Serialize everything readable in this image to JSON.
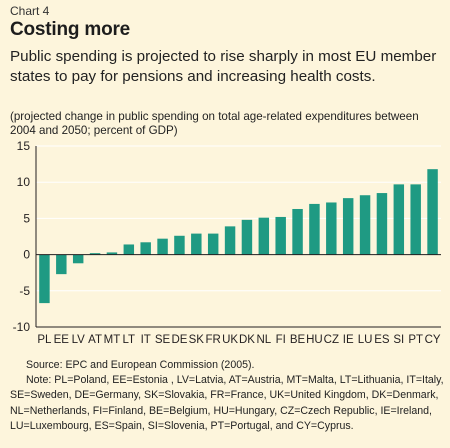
{
  "header": {
    "chart_label": "Chart 4",
    "title": "Costing more",
    "subtitle": "Public spending is projected to rise sharply in most EU member states to pay for pensions and increasing health costs."
  },
  "colors": {
    "background": "#fdf5dc",
    "bar": "#1f9a83",
    "grid": "#ffffff",
    "axis": "#231f20"
  },
  "chart_data": {
    "type": "bar",
    "ylabel": "(projected change in public spending on total age-related expenditures between 2004 and 2050; percent of GDP)",
    "ylim": [
      -10,
      15
    ],
    "yticks": [
      -10,
      -5,
      0,
      5,
      10,
      15
    ],
    "grid": true,
    "categories": [
      "PL",
      "EE",
      "LV",
      "AT",
      "MT",
      "LT",
      "IT",
      "SE",
      "DE",
      "SK",
      "FR",
      "UK",
      "DK",
      "NL",
      "FI",
      "BE",
      "HU",
      "CZ",
      "IE",
      "LU",
      "ES",
      "SI",
      "PT",
      "CY"
    ],
    "values": [
      -6.7,
      -2.7,
      -1.2,
      0.2,
      0.3,
      1.4,
      1.7,
      2.2,
      2.6,
      2.9,
      2.9,
      3.9,
      4.8,
      5.1,
      5.2,
      6.3,
      7.0,
      7.2,
      7.8,
      8.2,
      8.5,
      9.7,
      9.7,
      11.8
    ]
  },
  "footer": {
    "source": "Source: EPC and European Commission (2005).",
    "note_lines": [
      "Note: PL=Poland, EE=Estonia , LV=Latvia, AT=Austria, MT=Malta, LT=Lithuania, IT=Italy,",
      "SE=Sweden, DE=Germany, SK=Slovakia, FR=France, UK=United Kingdom, DK=Denmark,",
      "NL=Netherlands, FI=Finland, BE=Belgium, HU=Hungary, CZ=Czech Republic, IE=Ireland,",
      "LU=Luxembourg, ES=Spain, SI=Slovenia, PT=Portugal, and CY=Cyprus."
    ]
  }
}
